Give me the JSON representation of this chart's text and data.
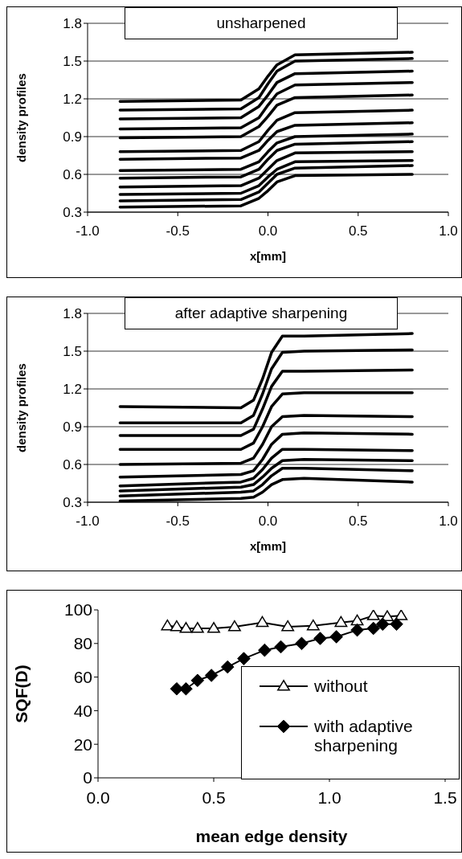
{
  "chart_data": [
    {
      "type": "line",
      "title": "unsharpened",
      "xlabel": "x[mm]",
      "ylabel": "density profiles",
      "xlim": [
        -1,
        1
      ],
      "xticks": [
        {
          "value": -1,
          "label": "-1.0"
        },
        -0.5,
        {
          "value": 0,
          "label": "0.0"
        },
        0.5,
        {
          "value": 1,
          "label": "1.0"
        }
      ],
      "ylim": [
        0.3,
        1.8
      ],
      "yticks": [
        0.3,
        0.6,
        0.9,
        1.2,
        1.5,
        1.8
      ],
      "grid": "y",
      "legend": false,
      "marker": "none",
      "line_style": "solid",
      "x": [
        -0.82,
        -0.15,
        -0.05,
        0,
        0.05,
        0.15,
        0.8
      ],
      "series": [
        {
          "color": "#000000",
          "values": [
            1.18,
            1.19,
            1.28,
            1.38,
            1.47,
            1.55,
            1.57
          ]
        },
        {
          "color": "#000000",
          "values": [
            1.11,
            1.12,
            1.21,
            1.32,
            1.42,
            1.5,
            1.52
          ]
        },
        {
          "color": "#000000",
          "values": [
            1.04,
            1.05,
            1.14,
            1.23,
            1.33,
            1.4,
            1.42
          ]
        },
        {
          "color": "#000000",
          "values": [
            0.96,
            0.97,
            1.05,
            1.15,
            1.24,
            1.31,
            1.33
          ]
        },
        {
          "color": "#000000",
          "values": [
            0.89,
            0.9,
            0.98,
            1.06,
            1.15,
            1.21,
            1.23
          ]
        },
        {
          "color": "#000000",
          "values": [
            0.78,
            0.79,
            0.86,
            0.95,
            1.03,
            1.09,
            1.11
          ]
        },
        {
          "color": "#000000",
          "values": [
            0.72,
            0.73,
            0.79,
            0.87,
            0.94,
            0.99,
            1.01
          ]
        },
        {
          "color": "#000000",
          "values": [
            0.63,
            0.64,
            0.7,
            0.78,
            0.85,
            0.9,
            0.92
          ]
        },
        {
          "color": "#000000",
          "values": [
            0.57,
            0.58,
            0.64,
            0.72,
            0.79,
            0.84,
            0.86
          ]
        },
        {
          "color": "#000000",
          "values": [
            0.5,
            0.51,
            0.57,
            0.64,
            0.71,
            0.77,
            0.78
          ]
        },
        {
          "color": "#000000",
          "values": [
            0.44,
            0.45,
            0.51,
            0.58,
            0.64,
            0.7,
            0.71
          ]
        },
        {
          "color": "#000000",
          "values": [
            0.39,
            0.4,
            0.46,
            0.53,
            0.6,
            0.65,
            0.67
          ]
        },
        {
          "color": "#000000",
          "values": [
            0.34,
            0.35,
            0.41,
            0.47,
            0.54,
            0.59,
            0.6
          ]
        }
      ]
    },
    {
      "type": "line",
      "title": "after adaptive sharpening",
      "xlabel": "x[mm]",
      "ylabel": "density profiles",
      "xlim": [
        -1,
        1
      ],
      "xticks": [
        {
          "value": -1,
          "label": "-1.0"
        },
        -0.5,
        {
          "value": 0,
          "label": "0.0"
        },
        0.5,
        {
          "value": 1,
          "label": "1.0"
        }
      ],
      "ylim": [
        0.3,
        1.8
      ],
      "yticks": [
        0.3,
        0.6,
        0.9,
        1.2,
        1.5,
        1.8
      ],
      "grid": "y",
      "legend": false,
      "marker": "none",
      "line_style": "solid",
      "x": [
        -0.82,
        -0.15,
        -0.08,
        -0.03,
        0.02,
        0.08,
        0.2,
        0.8
      ],
      "series": [
        {
          "color": "#000000",
          "values": [
            1.06,
            1.05,
            1.11,
            1.28,
            1.49,
            1.62,
            1.62,
            1.64
          ]
        },
        {
          "color": "#000000",
          "values": [
            0.93,
            0.93,
            0.99,
            1.16,
            1.36,
            1.49,
            1.5,
            1.51
          ]
        },
        {
          "color": "#000000",
          "values": [
            0.83,
            0.83,
            0.88,
            1.04,
            1.22,
            1.34,
            1.34,
            1.35
          ]
        },
        {
          "color": "#000000",
          "values": [
            0.72,
            0.72,
            0.77,
            0.9,
            1.06,
            1.16,
            1.17,
            1.17
          ]
        },
        {
          "color": "#000000",
          "values": [
            0.6,
            0.61,
            0.65,
            0.76,
            0.9,
            0.98,
            0.99,
            0.98
          ]
        },
        {
          "color": "#000000",
          "values": [
            0.5,
            0.52,
            0.55,
            0.64,
            0.76,
            0.84,
            0.85,
            0.84
          ]
        },
        {
          "color": "#000000",
          "values": [
            0.43,
            0.46,
            0.49,
            0.56,
            0.65,
            0.72,
            0.72,
            0.71
          ]
        },
        {
          "color": "#000000",
          "values": [
            0.39,
            0.42,
            0.44,
            0.5,
            0.57,
            0.63,
            0.64,
            0.63
          ]
        },
        {
          "color": "#000000",
          "values": [
            0.35,
            0.38,
            0.39,
            0.44,
            0.51,
            0.57,
            0.57,
            0.55
          ]
        },
        {
          "color": "#000000",
          "values": [
            0.31,
            0.33,
            0.34,
            0.38,
            0.44,
            0.48,
            0.49,
            0.46
          ]
        }
      ]
    },
    {
      "type": "line",
      "xlabel": "mean edge density",
      "ylabel": "SQF(D)",
      "xlim": [
        0,
        1.5
      ],
      "xticks": [
        {
          "value": 0,
          "label": "0.0"
        },
        0.5,
        {
          "value": 1,
          "label": "1.0"
        },
        1.5
      ],
      "ylim": [
        0,
        100
      ],
      "yticks": [
        0,
        20,
        40,
        60,
        80,
        100
      ],
      "legend": "bottom right",
      "line_style": "solid",
      "series": [
        {
          "name": "without",
          "color": "#000000",
          "marker": "triangle",
          "x": [
            0.3,
            0.34,
            0.38,
            0.43,
            0.5,
            0.59,
            0.71,
            0.82,
            0.93,
            1.05,
            1.12,
            1.19,
            1.25,
            1.31
          ],
          "values": [
            90.5,
            90,
            89,
            89,
            89,
            90,
            92.5,
            90,
            90.5,
            92.5,
            93.5,
            96.5,
            96,
            96.5
          ]
        },
        {
          "name": "with adaptive sharpening",
          "color": "#000000",
          "marker": "diamond",
          "x": [
            0.34,
            0.38,
            0.43,
            0.49,
            0.56,
            0.63,
            0.72,
            0.79,
            0.88,
            0.96,
            1.03,
            1.12,
            1.19,
            1.23,
            1.29
          ],
          "values": [
            53,
            53,
            58,
            61,
            66,
            71,
            76,
            78,
            80,
            83,
            84,
            88,
            89,
            91.5,
            91.5
          ]
        }
      ]
    }
  ]
}
